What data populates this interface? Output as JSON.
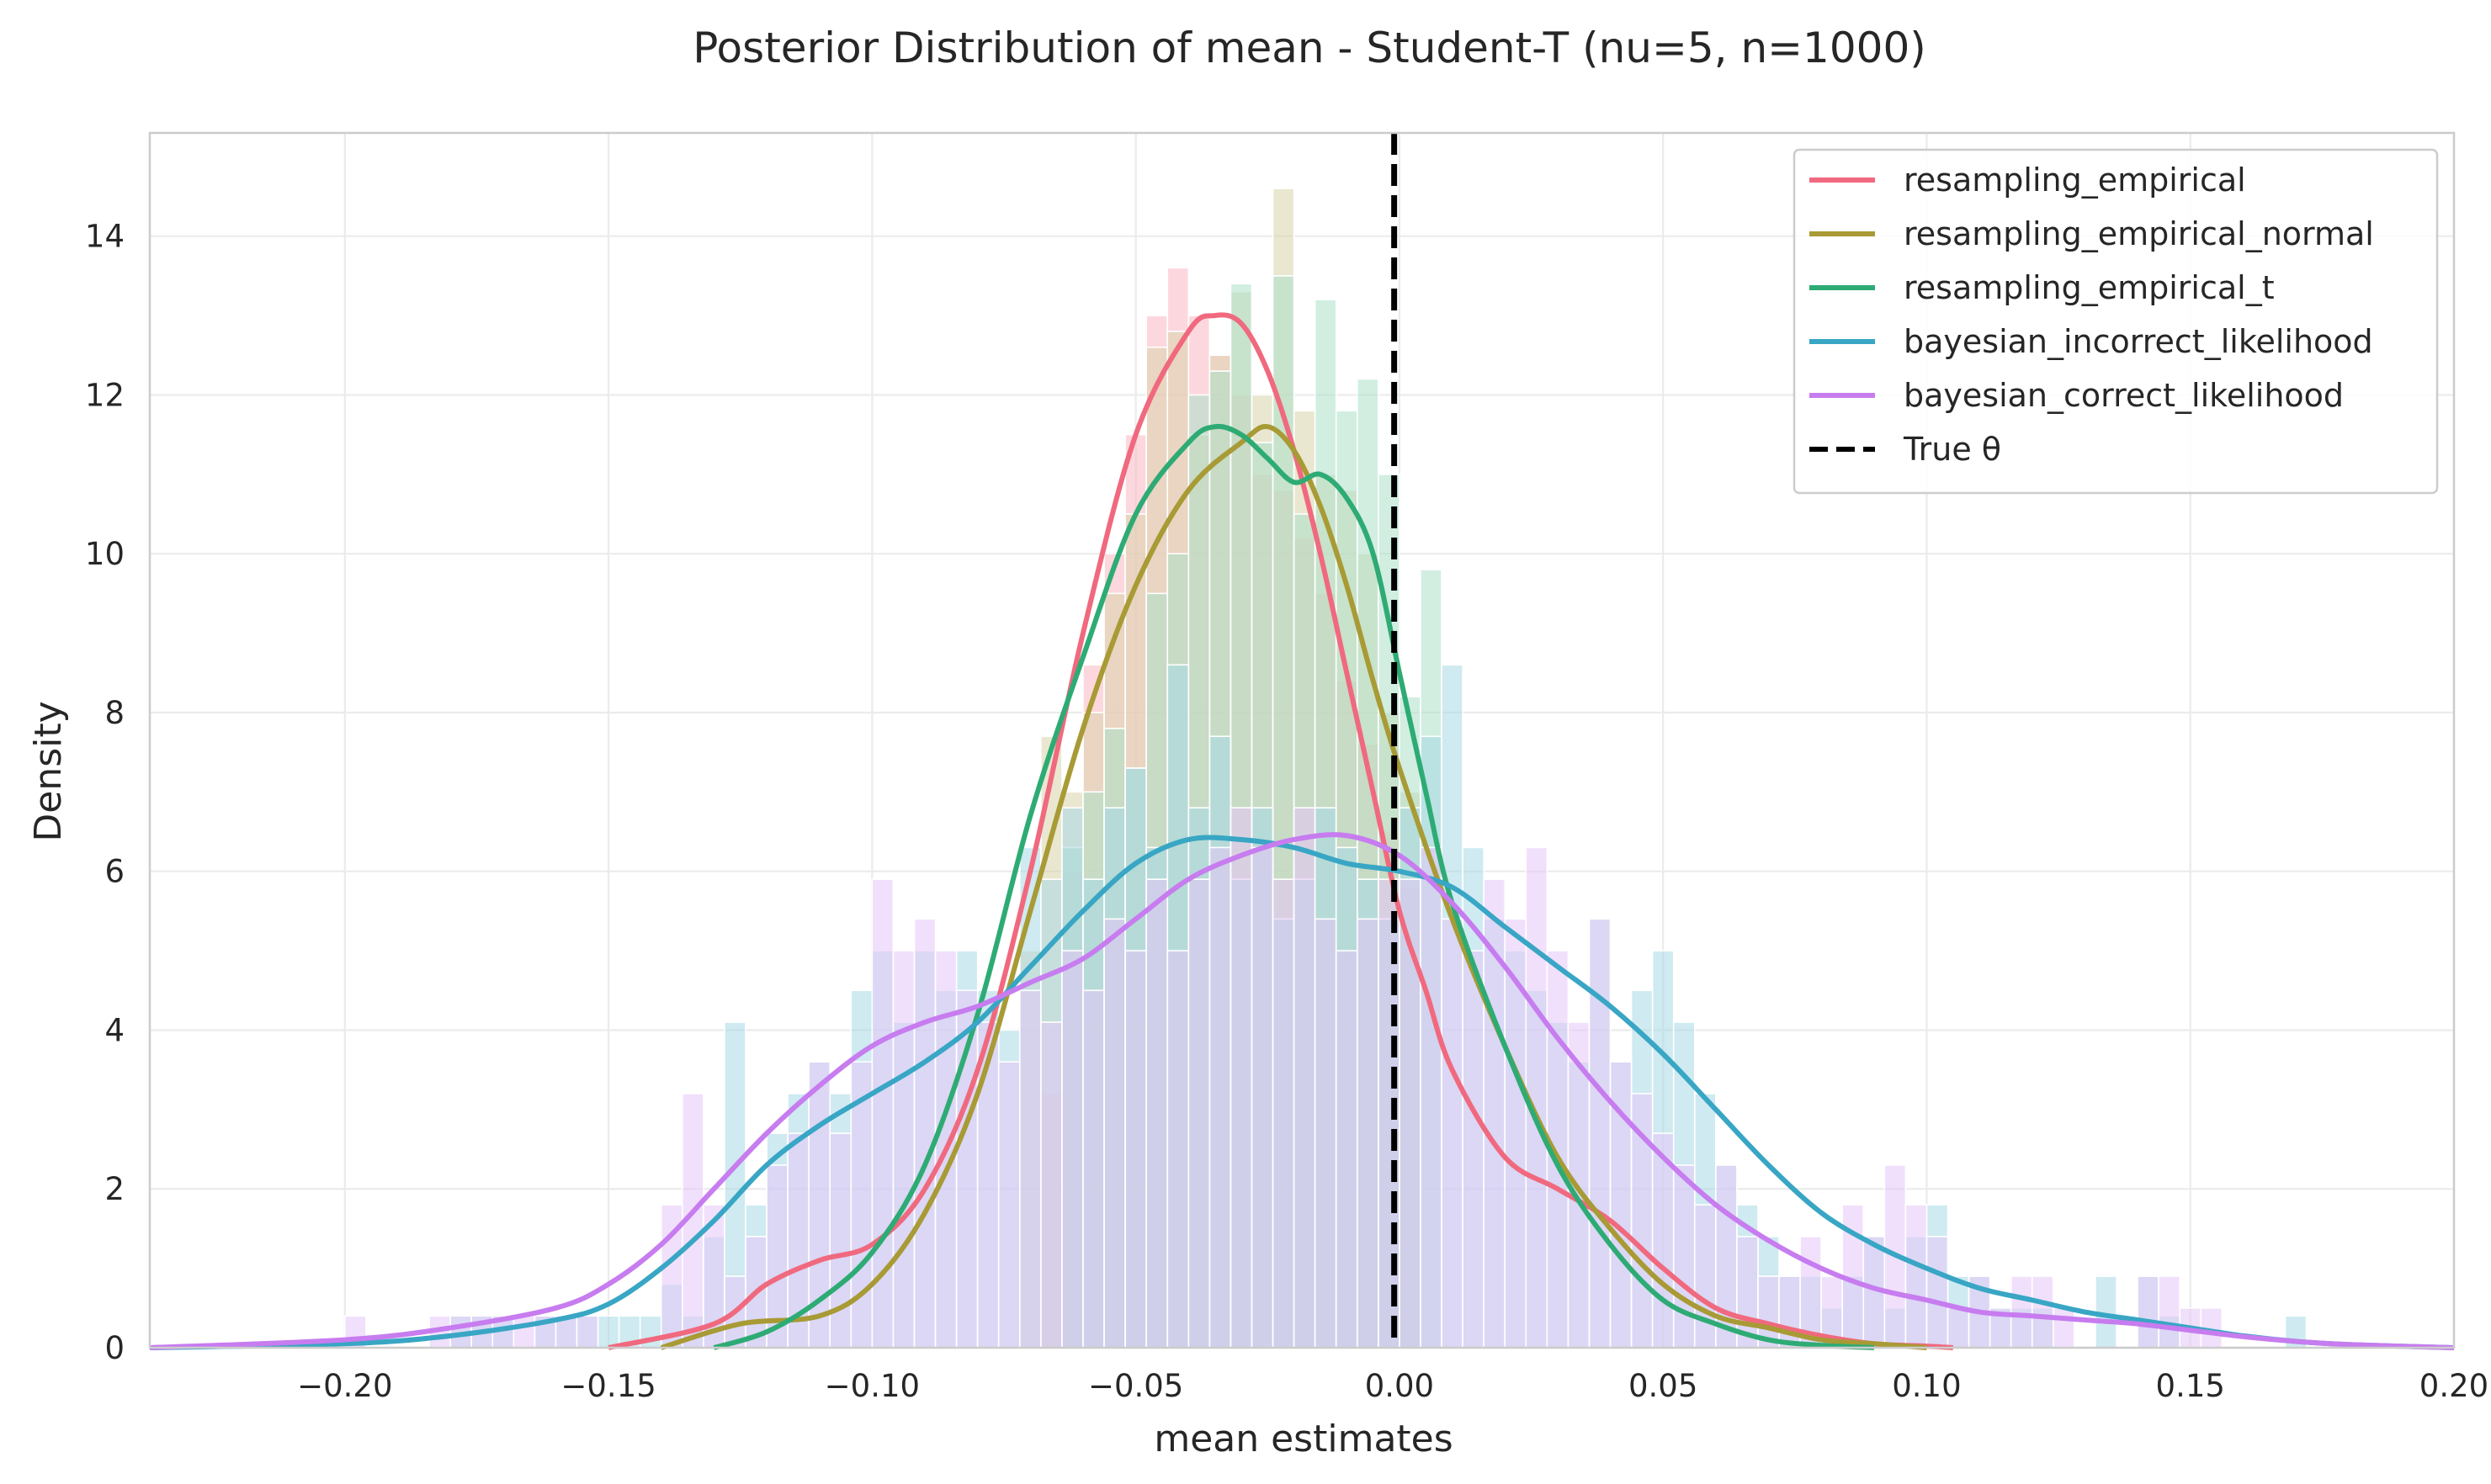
{
  "chart_data": {
    "type": "histogram with density curves",
    "title": "Posterior Distribution of mean - Student-T (nu=5, n=1000)",
    "xlabel": "mean estimates",
    "ylabel": "Density",
    "xlim": [
      -0.237,
      0.2
    ],
    "ylim": [
      0,
      15.3
    ],
    "xticks": [
      -0.2,
      -0.15,
      -0.1,
      -0.05,
      0.0,
      0.05,
      0.1,
      0.15,
      0.2
    ],
    "xtick_labels": [
      "−0.20",
      "−0.15",
      "−0.10",
      "−0.05",
      "0.00",
      "0.05",
      "0.10",
      "0.15",
      "0.20"
    ],
    "yticks": [
      0,
      2,
      4,
      6,
      8,
      10,
      12,
      14
    ],
    "ytick_labels": [
      "0",
      "2",
      "4",
      "6",
      "8",
      "10",
      "12",
      "14"
    ],
    "grid": true,
    "legend_position": "top-right",
    "true_value": {
      "label": "True θ",
      "x": -0.001,
      "style": "black dashed"
    },
    "series": [
      {
        "name": "resampling_empirical",
        "color": "#f0697e",
        "hist_color": "#f9b8c3",
        "kde": {
          "x": [
            -0.15,
            -0.13,
            -0.12,
            -0.11,
            -0.1,
            -0.09,
            -0.08,
            -0.07,
            -0.06,
            -0.05,
            -0.04,
            -0.035,
            -0.03,
            -0.025,
            -0.02,
            -0.015,
            -0.01,
            -0.005,
            0.0,
            0.005,
            0.01,
            0.02,
            0.03,
            0.04,
            0.05,
            0.06,
            0.07,
            0.08,
            0.09,
            0.1,
            0.105
          ],
          "y": [
            0.0,
            0.3,
            0.8,
            1.1,
            1.3,
            2.0,
            3.5,
            6.0,
            9.0,
            11.5,
            12.8,
            13.0,
            12.9,
            12.3,
            11.3,
            10.0,
            8.5,
            7.0,
            5.5,
            4.5,
            3.5,
            2.4,
            2.0,
            1.6,
            1.0,
            0.5,
            0.3,
            0.15,
            0.05,
            0.02,
            0.0
          ]
        },
        "hist": {
          "x": [
            -0.068,
            -0.064,
            -0.06,
            -0.056,
            -0.052,
            -0.048,
            -0.044,
            -0.04,
            -0.036,
            -0.032,
            -0.028,
            -0.024,
            -0.02,
            -0.016,
            -0.012,
            -0.008,
            -0.004,
            0.0
          ],
          "values": [
            3.2,
            6.0,
            8.6,
            10.0,
            11.5,
            13.0,
            13.6,
            13.0,
            12.5,
            12.0,
            11.0,
            10.8,
            10.2,
            9.5,
            8.4,
            7.6,
            6.5,
            5.8
          ]
        }
      },
      {
        "name": "resampling_empirical_normal",
        "color": "#a89a35",
        "hist_color": "#d9d3aa",
        "kde": {
          "x": [
            -0.14,
            -0.125,
            -0.11,
            -0.1,
            -0.09,
            -0.08,
            -0.07,
            -0.06,
            -0.05,
            -0.04,
            -0.03,
            -0.025,
            -0.02,
            -0.015,
            -0.01,
            -0.005,
            0.0,
            0.01,
            0.02,
            0.03,
            0.04,
            0.05,
            0.06,
            0.07,
            0.08,
            0.09,
            0.1
          ],
          "y": [
            0.0,
            0.3,
            0.4,
            0.8,
            1.7,
            3.2,
            5.5,
            7.8,
            9.6,
            10.8,
            11.4,
            11.6,
            11.3,
            10.6,
            9.6,
            8.4,
            7.3,
            5.4,
            3.8,
            2.4,
            1.5,
            0.8,
            0.4,
            0.25,
            0.1,
            0.05,
            0.0
          ]
        },
        "hist": {
          "x": [
            -0.072,
            -0.068,
            -0.064,
            -0.06,
            -0.056,
            -0.052,
            -0.048,
            -0.044,
            -0.04,
            -0.036,
            -0.032,
            -0.028,
            -0.024,
            -0.02,
            -0.016,
            -0.012,
            -0.008,
            -0.004,
            0.0
          ],
          "values": [
            5.0,
            7.7,
            7.0,
            8.0,
            9.5,
            10.5,
            12.6,
            12.8,
            11.5,
            12.5,
            13.3,
            12.0,
            14.6,
            11.8,
            11.0,
            10.8,
            10.0,
            8.0,
            7.0
          ]
        }
      },
      {
        "name": "resampling_empirical_t",
        "color": "#2eab74",
        "hist_color": "#ace0c8",
        "kde": {
          "x": [
            -0.13,
            -0.12,
            -0.11,
            -0.1,
            -0.09,
            -0.08,
            -0.07,
            -0.06,
            -0.05,
            -0.04,
            -0.035,
            -0.03,
            -0.025,
            -0.02,
            -0.015,
            -0.01,
            -0.005,
            0.0,
            0.005,
            0.01,
            0.02,
            0.03,
            0.04,
            0.05,
            0.06,
            0.07,
            0.08,
            0.09
          ],
          "y": [
            0.0,
            0.2,
            0.6,
            1.2,
            2.3,
            4.2,
            6.7,
            8.7,
            10.5,
            11.4,
            11.6,
            11.5,
            11.2,
            10.9,
            11.0,
            10.7,
            10.0,
            8.5,
            7.0,
            5.6,
            3.8,
            2.3,
            1.3,
            0.6,
            0.3,
            0.1,
            0.03,
            0.0
          ]
        },
        "hist": {
          "x": [
            -0.064,
            -0.06,
            -0.056,
            -0.052,
            -0.048,
            -0.044,
            -0.04,
            -0.036,
            -0.032,
            -0.028,
            -0.024,
            -0.02,
            -0.016,
            -0.012,
            -0.008,
            -0.004,
            0.0,
            0.004
          ],
          "values": [
            6.3,
            7.0,
            7.8,
            7.3,
            9.5,
            10.0,
            12.0,
            12.3,
            13.4,
            11.4,
            13.5,
            10.5,
            13.2,
            11.8,
            12.2,
            11.0,
            8.2,
            9.8
          ]
        }
      },
      {
        "name": "bayesian_incorrect_likelihood",
        "color": "#38a6c4",
        "hist_color": "#a8d8e6",
        "kde": {
          "x": [
            -0.237,
            -0.2,
            -0.18,
            -0.16,
            -0.15,
            -0.14,
            -0.13,
            -0.12,
            -0.11,
            -0.1,
            -0.09,
            -0.08,
            -0.07,
            -0.06,
            -0.05,
            -0.04,
            -0.03,
            -0.02,
            -0.01,
            0.0,
            0.01,
            0.02,
            0.03,
            0.04,
            0.05,
            0.06,
            0.07,
            0.08,
            0.09,
            0.1,
            0.11,
            0.12,
            0.13,
            0.14,
            0.15,
            0.16,
            0.17,
            0.18,
            0.2
          ],
          "y": [
            0.0,
            0.05,
            0.15,
            0.35,
            0.55,
            1.0,
            1.6,
            2.3,
            2.8,
            3.2,
            3.6,
            4.1,
            4.8,
            5.5,
            6.1,
            6.4,
            6.4,
            6.3,
            6.1,
            6.0,
            5.8,
            5.3,
            4.8,
            4.3,
            3.7,
            3.0,
            2.3,
            1.7,
            1.3,
            1.0,
            0.75,
            0.6,
            0.45,
            0.35,
            0.25,
            0.15,
            0.08,
            0.04,
            0.0
          ]
        },
        "hist": {
          "x": [
            -0.2,
            -0.196,
            -0.192,
            -0.188,
            -0.184,
            -0.18,
            -0.176,
            -0.172,
            -0.168,
            -0.164,
            -0.16,
            -0.156,
            -0.152,
            -0.148,
            -0.144,
            -0.14,
            -0.136,
            -0.132,
            -0.128,
            -0.124,
            -0.12,
            -0.116,
            -0.112,
            -0.108,
            -0.104,
            -0.1,
            -0.096,
            -0.092,
            -0.088,
            -0.084,
            -0.08,
            -0.076,
            -0.072,
            -0.068,
            -0.064,
            -0.06,
            -0.056,
            -0.052,
            -0.048,
            -0.044,
            -0.04,
            -0.036,
            -0.032,
            -0.028,
            -0.024,
            -0.02,
            -0.016,
            -0.012,
            -0.008,
            -0.004,
            0.0,
            0.004,
            0.008,
            0.012,
            0.016,
            0.02,
            0.024,
            0.028,
            0.032,
            0.036,
            0.04,
            0.044,
            0.048,
            0.052,
            0.056,
            0.06,
            0.064,
            0.068,
            0.072,
            0.076,
            0.08,
            0.084,
            0.088,
            0.092,
            0.096,
            0.1,
            0.104,
            0.108,
            0.112,
            0.116,
            0.12,
            0.124,
            0.128,
            0.132,
            0.136,
            0.14,
            0.144,
            0.148,
            0.152,
            0.156,
            0.16,
            0.164,
            0.168
          ],
          "values": [
            0.0,
            0.0,
            0.0,
            0.0,
            0.0,
            0.4,
            0.4,
            0.4,
            0.0,
            0.4,
            0.4,
            0.4,
            0.4,
            0.4,
            0.4,
            0.8,
            0.4,
            1.4,
            4.1,
            1.8,
            2.7,
            3.2,
            3.6,
            3.2,
            4.5,
            5.0,
            4.1,
            5.0,
            4.5,
            5.0,
            4.5,
            4.0,
            6.3,
            5.9,
            6.8,
            5.9,
            6.8,
            7.3,
            6.3,
            8.6,
            6.8,
            7.7,
            5.9,
            6.8,
            5.4,
            5.9,
            6.8,
            6.3,
            5.9,
            5.4,
            6.8,
            7.7,
            8.6,
            6.3,
            5.4,
            5.0,
            4.5,
            4.1,
            3.6,
            5.4,
            3.6,
            4.5,
            5.0,
            4.1,
            3.2,
            2.3,
            1.8,
            1.4,
            0.9,
            0.9,
            0.5,
            0.9,
            1.4,
            0.5,
            1.4,
            1.8,
            0.9,
            0.9,
            0.5,
            0.5,
            0.5,
            0.0,
            0.0,
            0.9,
            0.0,
            0.9,
            0.4,
            0.0,
            0.0,
            0.0,
            0.0,
            0.0,
            0.4
          ]
        }
      },
      {
        "name": "bayesian_correct_likelihood",
        "color": "#c77cef",
        "hist_color": "#e5c7f7",
        "kde": {
          "x": [
            -0.237,
            -0.2,
            -0.18,
            -0.16,
            -0.15,
            -0.14,
            -0.13,
            -0.12,
            -0.11,
            -0.1,
            -0.09,
            -0.08,
            -0.07,
            -0.06,
            -0.05,
            -0.04,
            -0.03,
            -0.02,
            -0.01,
            0.0,
            0.01,
            0.02,
            0.03,
            0.04,
            0.05,
            0.06,
            0.07,
            0.08,
            0.09,
            0.1,
            0.11,
            0.12,
            0.13,
            0.14,
            0.15,
            0.16,
            0.17,
            0.18,
            0.2
          ],
          "y": [
            0.0,
            0.1,
            0.25,
            0.5,
            0.8,
            1.3,
            2.0,
            2.7,
            3.3,
            3.8,
            4.1,
            4.3,
            4.6,
            4.9,
            5.4,
            5.9,
            6.2,
            6.4,
            6.45,
            6.2,
            5.6,
            4.8,
            3.9,
            3.1,
            2.4,
            1.8,
            1.35,
            1.0,
            0.75,
            0.6,
            0.45,
            0.4,
            0.35,
            0.3,
            0.22,
            0.14,
            0.08,
            0.04,
            0.0
          ]
        },
        "hist": {
          "x": [
            -0.2,
            -0.196,
            -0.192,
            -0.188,
            -0.184,
            -0.18,
            -0.176,
            -0.172,
            -0.168,
            -0.164,
            -0.16,
            -0.156,
            -0.152,
            -0.148,
            -0.144,
            -0.14,
            -0.136,
            -0.132,
            -0.128,
            -0.124,
            -0.12,
            -0.116,
            -0.112,
            -0.108,
            -0.104,
            -0.1,
            -0.096,
            -0.092,
            -0.088,
            -0.084,
            -0.08,
            -0.076,
            -0.072,
            -0.068,
            -0.064,
            -0.06,
            -0.056,
            -0.052,
            -0.048,
            -0.044,
            -0.04,
            -0.036,
            -0.032,
            -0.028,
            -0.024,
            -0.02,
            -0.016,
            -0.012,
            -0.008,
            -0.004,
            0.0,
            0.004,
            0.008,
            0.012,
            0.016,
            0.02,
            0.024,
            0.028,
            0.032,
            0.036,
            0.04,
            0.044,
            0.048,
            0.052,
            0.056,
            0.06,
            0.064,
            0.068,
            0.072,
            0.076,
            0.08,
            0.084,
            0.088,
            0.092,
            0.096,
            0.1,
            0.104,
            0.108,
            0.112,
            0.116,
            0.12,
            0.124,
            0.128,
            0.132,
            0.136,
            0.14,
            0.144,
            0.148,
            0.152,
            0.156,
            0.16,
            0.164,
            0.168
          ],
          "values": [
            0.4,
            0.0,
            0.0,
            0.0,
            0.4,
            0.4,
            0.4,
            0.4,
            0.4,
            0.4,
            0.4,
            0.4,
            0.0,
            0.0,
            0.0,
            1.8,
            3.2,
            1.8,
            0.9,
            1.4,
            2.3,
            2.7,
            3.6,
            2.7,
            3.6,
            5.9,
            5.0,
            5.4,
            5.0,
            4.5,
            4.1,
            3.6,
            4.5,
            4.1,
            5.0,
            4.5,
            5.4,
            5.0,
            5.9,
            5.0,
            5.9,
            6.3,
            6.8,
            6.3,
            5.9,
            6.8,
            5.4,
            5.0,
            5.4,
            5.9,
            5.9,
            6.3,
            5.4,
            5.0,
            5.9,
            5.4,
            6.3,
            5.0,
            4.1,
            5.4,
            3.6,
            3.2,
            2.7,
            2.3,
            1.8,
            2.3,
            1.4,
            0.9,
            0.9,
            1.4,
            0.9,
            1.8,
            1.4,
            2.3,
            1.8,
            1.4,
            0.5,
            0.9,
            0.5,
            0.9,
            0.9,
            0.5,
            0.0,
            0.0,
            0.0,
            0.9,
            0.9,
            0.5,
            0.5,
            0.0,
            0.0,
            0.0,
            0.0
          ]
        }
      }
    ]
  }
}
